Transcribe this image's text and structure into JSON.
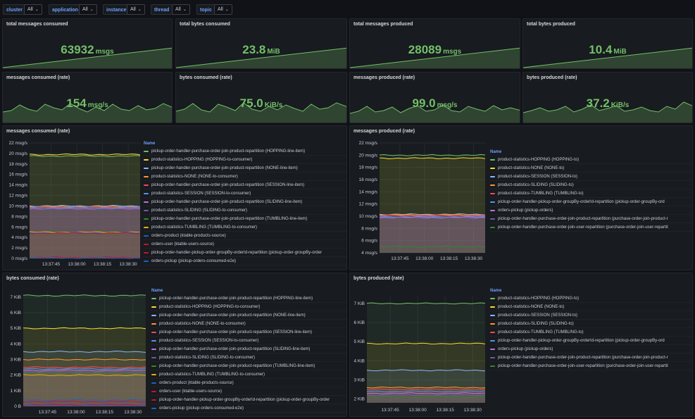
{
  "variables": [
    {
      "label": "cluster",
      "value": "All"
    },
    {
      "label": "application",
      "value": "All"
    },
    {
      "label": "instance",
      "value": "All"
    },
    {
      "label": "thread",
      "value": "All"
    },
    {
      "label": "topic",
      "value": "All"
    }
  ],
  "stats": [
    {
      "title": "total messages consumed",
      "value": "63932",
      "unit": "msgs"
    },
    {
      "title": "total bytes consumed",
      "value": "23.8",
      "unit": "MiB"
    },
    {
      "title": "total messages produced",
      "value": "28089",
      "unit": "msgs"
    },
    {
      "title": "total bytes produced",
      "value": "10.4",
      "unit": "MiB"
    },
    {
      "title": "messages consumed (rate)",
      "value": "154",
      "unit": "msg/s"
    },
    {
      "title": "bytes consumed (rate)",
      "value": "75.0",
      "unit": "KiB/s"
    },
    {
      "title": "messages produced (rate)",
      "value": "99.0",
      "unit": "msg/s"
    },
    {
      "title": "bytes produced (rate)",
      "value": "37.2",
      "unit": "KiB/s"
    }
  ],
  "legend_header": "Name",
  "chart_data": [
    {
      "type": "area",
      "title": "messages consumed (rate)",
      "x_ticks": [
        "13:37:45",
        "13:38:00",
        "13:38:15",
        "13:38:30"
      ],
      "y_ticks": [
        "0 msg/s",
        "2 msg/s",
        "4 msg/s",
        "6 msg/s",
        "8 msg/s",
        "10 msg/s",
        "12 msg/s",
        "14 msg/s",
        "16 msg/s",
        "18 msg/s",
        "20 msg/s",
        "22 msg/s"
      ],
      "ylim": [
        0,
        22
      ],
      "series": [
        {
          "name": "pickup-order-handler-purchase-order-join-product-repartition (HOPPING-line-item)",
          "color": "#73bf69",
          "value": 19.5
        },
        {
          "name": "product-statistics-HOPPING (HOPPING-to-consumer)",
          "color": "#fade2a",
          "value": 19.8
        },
        {
          "name": "pickup-order-handler-purchase-order-join-product-repartition (NONE-line-item)",
          "color": "#8ab8ff",
          "value": 10.0
        },
        {
          "name": "product-statistics-NONE (NONE-to-consumer)",
          "color": "#ff9830",
          "value": 9.9
        },
        {
          "name": "pickup-order-handler-purchase-order-join-product-repartition (SESSION-line-item)",
          "color": "#f2495c",
          "value": 9.8
        },
        {
          "name": "product-statistics-SESSION (SESSION-to-consumer)",
          "color": "#5794f2",
          "value": 9.7
        },
        {
          "name": "pickup-order-handler-purchase-order-join-product-repartition (SLIDING-line-item)",
          "color": "#b877d9",
          "value": 9.5
        },
        {
          "name": "product-statistics-SLIDING (SLIDING-to-consumer)",
          "color": "#705da0",
          "value": 9.4
        },
        {
          "name": "pickup-order-handler-purchase-order-join-product-repartition (TUMBLING-line-item)",
          "color": "#37872d",
          "value": 5.0
        },
        {
          "name": "product-statistics-TUMBLING (TUMBLING-to-consumer)",
          "color": "#e0b400",
          "value": 5.0
        },
        {
          "name": "orders-product (ktable-products-source)",
          "color": "#1f60c4",
          "value": 4.9
        },
        {
          "name": "orders-user (ktable-users-source)",
          "color": "#c4162a",
          "value": 4.8
        },
        {
          "name": "pickup-order-handler-pickup-order-groupBy-orderId-repartition (pickup-order-groupBy-order",
          "color": "#c4162a",
          "value": 0.2
        },
        {
          "name": "orders-pickup (pickup-orders-consumed-e2e)",
          "color": "#1f60c4",
          "value": 0.1
        }
      ]
    },
    {
      "type": "area",
      "title": "messages produced (rate)",
      "x_ticks": [
        "13:37:45",
        "13:38:00",
        "13:38:15",
        "13:38:30"
      ],
      "y_ticks": [
        "4 msg/s",
        "6 msg/s",
        "8 msg/s",
        "10 msg/s",
        "12 msg/s",
        "14 msg/s",
        "16 msg/s",
        "18 msg/s",
        "20 msg/s",
        "22 msg/s"
      ],
      "ylim": [
        4,
        22
      ],
      "series": [
        {
          "name": "product-statistics-HOPPING (HOPPING-to)",
          "color": "#73bf69",
          "value": 20.0
        },
        {
          "name": "product-statistics-NONE (NONE-to)",
          "color": "#fade2a",
          "value": 19.5
        },
        {
          "name": "product-statistics-SESSION (SESSION-to)",
          "color": "#8ab8ff",
          "value": 10.3
        },
        {
          "name": "product-statistics-SLIDING (SLIDING-to)",
          "color": "#ff9830",
          "value": 10.2
        },
        {
          "name": "product-statistics-TUMBLING (TUMBLING-to)",
          "color": "#f2495c",
          "value": 10.1
        },
        {
          "name": "pickup-order-handler-pickup-order-groupBy-orderId-repartition (pickup-order-groupBy-ord",
          "color": "#5794f2",
          "value": 9.9
        },
        {
          "name": "orders-pickup (pickup-orders)",
          "color": "#b877d9",
          "value": 9.8
        },
        {
          "name": "pickup-order-handler-purchase-order-join-product-repartition (purchase-order-join-product-r",
          "color": "#705da0",
          "value": 9.7
        },
        {
          "name": "pickup-order-handler-purchase-order-join-user-repartition (purchase-order-join-user-repartit",
          "color": "#37872d",
          "value": 5.0
        }
      ]
    },
    {
      "type": "area",
      "title": "bytes consumed (rate)",
      "x_ticks": [
        "13:37:45",
        "13:38:00",
        "13:38:15",
        "13:38:30"
      ],
      "y_ticks": [
        "0 B",
        "1 KiB",
        "2 KiB",
        "3 KiB",
        "4 KiB",
        "5 KiB",
        "6 KiB",
        "7 KiB"
      ],
      "ylim": [
        0,
        7.4
      ],
      "series": [
        {
          "name": "pickup-order-handler-purchase-order-join-product-repartition (HOPPING-line-item)",
          "color": "#73bf69",
          "value": 7.1
        },
        {
          "name": "product-statistics-HOPPING (HOPPING-to-consumer)",
          "color": "#fade2a",
          "value": 5.0
        },
        {
          "name": "pickup-order-handler-purchase-order-join-product-repartition (NONE-line-item)",
          "color": "#8ab8ff",
          "value": 3.5
        },
        {
          "name": "product-statistics-NONE (NONE-to-consumer)",
          "color": "#ff9830",
          "value": 3.0
        },
        {
          "name": "pickup-order-handler-purchase-order-join-product-repartition (SESSION-line-item)",
          "color": "#f2495c",
          "value": 2.5
        },
        {
          "name": "product-statistics-SESSION (SESSION-to-consumer)",
          "color": "#5794f2",
          "value": 2.4
        },
        {
          "name": "pickup-order-handler-purchase-order-join-product-repartition (SLIDING-line-item)",
          "color": "#b877d9",
          "value": 2.3
        },
        {
          "name": "product-statistics-SLIDING (SLIDING-to-consumer)",
          "color": "#705da0",
          "value": 2.2
        },
        {
          "name": "pickup-order-handler-purchase-order-join-product-repartition (TUMBLING-line-item)",
          "color": "#37872d",
          "value": 2.1
        },
        {
          "name": "product-statistics-TUMBLING (TUMBLING-to-consumer)",
          "color": "#e0b400",
          "value": 2.0
        },
        {
          "name": "orders-product (ktable-products-source)",
          "color": "#1f60c4",
          "value": 0.4
        },
        {
          "name": "orders-user (ktable-users-source)",
          "color": "#c4162a",
          "value": 0.3
        },
        {
          "name": "pickup-order-handler-pickup-order-groupBy-orderId-repartition (pickup-order-groupBy-order",
          "color": "#c4162a",
          "value": 0.1
        },
        {
          "name": "orders-pickup (pickup-orders-consumed-e2e)",
          "color": "#1f60c4",
          "value": 0.05
        }
      ]
    },
    {
      "type": "area",
      "title": "bytes produced (rate)",
      "x_ticks": [
        "13:37:45",
        "13:38:00",
        "13:38:15",
        "13:38:30"
      ],
      "y_ticks": [
        "2 KiB",
        "3 KiB",
        "4 KiB",
        "5 KiB",
        "6 KiB",
        "7 KiB"
      ],
      "ylim": [
        1.8,
        7.4
      ],
      "series": [
        {
          "name": "product-statistics-HOPPING (HOPPING-to)",
          "color": "#73bf69",
          "value": 7.0
        },
        {
          "name": "product-statistics-NONE (NONE-to)",
          "color": "#fade2a",
          "value": 4.9
        },
        {
          "name": "product-statistics-SESSION (SESSION-to)",
          "color": "#8ab8ff",
          "value": 3.5
        },
        {
          "name": "product-statistics-SLIDING (SLIDING-to)",
          "color": "#ff9830",
          "value": 2.6
        },
        {
          "name": "product-statistics-TUMBLING (TUMBLING-to)",
          "color": "#f2495c",
          "value": 2.5
        },
        {
          "name": "pickup-order-handler-pickup-order-groupBy-orderId-repartition (pickup-order-groupBy-ord",
          "color": "#5794f2",
          "value": 2.4
        },
        {
          "name": "orders-pickup (pickup-orders)",
          "color": "#b877d9",
          "value": 2.3
        },
        {
          "name": "pickup-order-handler-purchase-order-join-product-repartition (purchase-order-join-product-r",
          "color": "#705da0",
          "value": 2.2
        },
        {
          "name": "pickup-order-handler-purchase-order-join-user-repartition (purchase-order-join-user-repartit",
          "color": "#37872d",
          "value": 2.1
        }
      ]
    }
  ]
}
